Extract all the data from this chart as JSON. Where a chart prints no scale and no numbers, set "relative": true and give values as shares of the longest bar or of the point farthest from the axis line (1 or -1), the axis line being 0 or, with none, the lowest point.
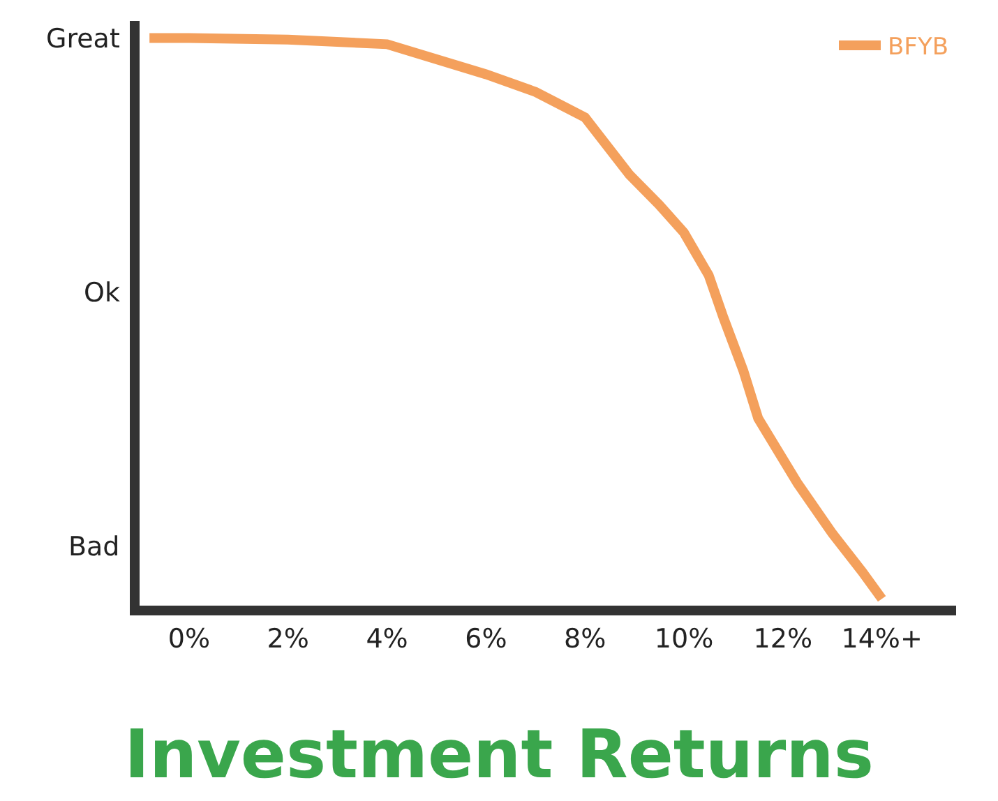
{
  "chart_data": {
    "type": "line",
    "title": "Investment Returns",
    "relative": true,
    "x": [
      -0.8,
      0,
      2,
      4,
      6,
      7,
      8,
      8.9,
      9.5,
      10,
      10.5,
      10.8,
      11.2,
      11.5,
      12.3,
      13,
      13.6,
      14
    ],
    "series": [
      {
        "name": "BFYB",
        "color": "#f4a05c",
        "values": [
          1.0,
          1.0,
          0.997,
          0.989,
          0.936,
          0.905,
          0.86,
          0.759,
          0.706,
          0.657,
          0.582,
          0.507,
          0.414,
          0.33,
          0.215,
          0.127,
          0.06,
          0.012
        ]
      }
    ],
    "xlim": [
      -1,
      15.5
    ],
    "xticks": [
      {
        "value": 0,
        "label": "0%"
      },
      {
        "value": 2,
        "label": "2%"
      },
      {
        "value": 4,
        "label": "4%"
      },
      {
        "value": 6,
        "label": "6%"
      },
      {
        "value": 8,
        "label": "8%"
      },
      {
        "value": 10,
        "label": "10%"
      },
      {
        "value": 12,
        "label": "12%"
      },
      {
        "value": 14,
        "label": "14%+"
      }
    ],
    "annotations": [
      "Great",
      "Ok",
      "Bad"
    ],
    "legend": "top right",
    "marker": "none",
    "line_style": "solid"
  }
}
